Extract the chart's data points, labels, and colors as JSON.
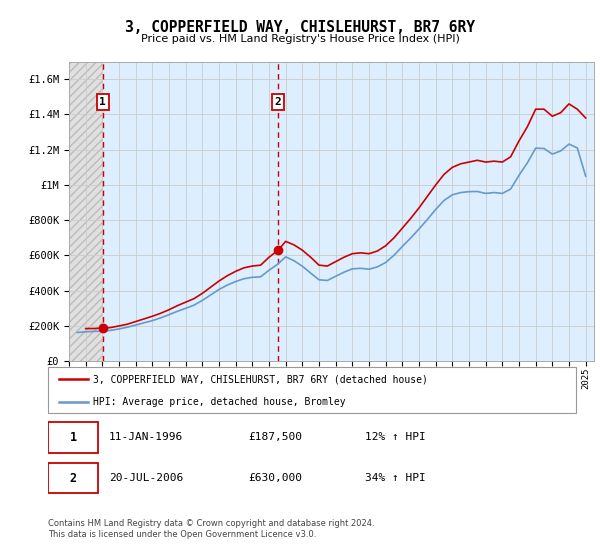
{
  "title": "3, COPPERFIELD WAY, CHISLEHURST, BR7 6RY",
  "subtitle": "Price paid vs. HM Land Registry's House Price Index (HPI)",
  "ylabel_ticks": [
    "£0",
    "£200K",
    "£400K",
    "£600K",
    "£800K",
    "£1M",
    "£1.2M",
    "£1.4M",
    "£1.6M"
  ],
  "ytick_values": [
    0,
    200000,
    400000,
    600000,
    800000,
    1000000,
    1200000,
    1400000,
    1600000
  ],
  "ylim": [
    0,
    1700000
  ],
  "xlim_start": 1994.0,
  "xlim_end": 2025.5,
  "xticks": [
    1994,
    1995,
    1996,
    1997,
    1998,
    1999,
    2000,
    2001,
    2002,
    2003,
    2004,
    2005,
    2006,
    2007,
    2008,
    2009,
    2010,
    2011,
    2012,
    2013,
    2014,
    2015,
    2016,
    2017,
    2018,
    2019,
    2020,
    2021,
    2022,
    2023,
    2024,
    2025
  ],
  "purchase1_x": 1996.03,
  "purchase1_y": 187500,
  "purchase2_x": 2006.55,
  "purchase2_y": 630000,
  "purchase1_label": "1",
  "purchase2_label": "2",
  "red_line_color": "#cc0000",
  "blue_line_color": "#6699cc",
  "grid_color": "#cccccc",
  "bg_color": "#ddeeff",
  "hatch_bg": "#e0e0e0",
  "legend1_text": "3, COPPERFIELD WAY, CHISLEHURST, BR7 6RY (detached house)",
  "legend2_text": "HPI: Average price, detached house, Bromley",
  "table_row1": [
    "1",
    "11-JAN-1996",
    "£187,500",
    "12% ↑ HPI"
  ],
  "table_row2": [
    "2",
    "20-JUL-2006",
    "£630,000",
    "34% ↑ HPI"
  ],
  "footer_text": "Contains HM Land Registry data © Crown copyright and database right 2024.\nThis data is licensed under the Open Government Licence v3.0.",
  "red_hpi_data_x": [
    1995.0,
    1995.5,
    1996.03,
    1996.5,
    1997.0,
    1997.5,
    1998.0,
    1998.5,
    1999.0,
    1999.5,
    2000.0,
    2000.5,
    2001.0,
    2001.5,
    2002.0,
    2002.5,
    2003.0,
    2003.5,
    2004.0,
    2004.5,
    2005.0,
    2005.5,
    2006.0,
    2006.55,
    2007.0,
    2007.5,
    2008.0,
    2008.5,
    2009.0,
    2009.5,
    2010.0,
    2010.5,
    2011.0,
    2011.5,
    2012.0,
    2012.5,
    2013.0,
    2013.5,
    2014.0,
    2014.5,
    2015.0,
    2015.5,
    2016.0,
    2016.5,
    2017.0,
    2017.5,
    2018.0,
    2018.5,
    2019.0,
    2019.5,
    2020.0,
    2020.5,
    2021.0,
    2021.5,
    2022.0,
    2022.5,
    2023.0,
    2023.5,
    2024.0,
    2024.5,
    2025.0
  ],
  "red_hpi_data_y": [
    185000,
    185500,
    187500,
    191000,
    200000,
    210000,
    225000,
    240000,
    255000,
    272000,
    292000,
    315000,
    335000,
    355000,
    385000,
    420000,
    455000,
    485000,
    510000,
    530000,
    540000,
    545000,
    590000,
    630000,
    680000,
    660000,
    630000,
    590000,
    545000,
    540000,
    565000,
    590000,
    610000,
    615000,
    610000,
    625000,
    655000,
    700000,
    755000,
    810000,
    870000,
    935000,
    1000000,
    1060000,
    1100000,
    1120000,
    1130000,
    1140000,
    1130000,
    1135000,
    1130000,
    1160000,
    1250000,
    1330000,
    1430000,
    1430000,
    1390000,
    1410000,
    1460000,
    1430000,
    1380000
  ],
  "blue_hpi_data_x": [
    1994.5,
    1995.0,
    1995.5,
    1996.0,
    1996.5,
    1997.0,
    1997.5,
    1998.0,
    1998.5,
    1999.0,
    1999.5,
    2000.0,
    2000.5,
    2001.0,
    2001.5,
    2002.0,
    2002.5,
    2003.0,
    2003.5,
    2004.0,
    2004.5,
    2005.0,
    2005.5,
    2006.0,
    2006.5,
    2007.0,
    2007.5,
    2008.0,
    2008.5,
    2009.0,
    2009.5,
    2010.0,
    2010.5,
    2011.0,
    2011.5,
    2012.0,
    2012.5,
    2013.0,
    2013.5,
    2014.0,
    2014.5,
    2015.0,
    2015.5,
    2016.0,
    2016.5,
    2017.0,
    2017.5,
    2018.0,
    2018.5,
    2019.0,
    2019.5,
    2020.0,
    2020.5,
    2021.0,
    2021.5,
    2022.0,
    2022.5,
    2023.0,
    2023.5,
    2024.0,
    2024.5,
    2025.0
  ],
  "blue_hpi_data_y": [
    163000,
    167000,
    169000,
    171000,
    175000,
    183000,
    193000,
    205000,
    218000,
    230000,
    246000,
    264000,
    283000,
    300000,
    318000,
    345000,
    376000,
    407000,
    432000,
    452000,
    468000,
    476000,
    479000,
    516000,
    549000,
    592000,
    570000,
    539000,
    500000,
    462000,
    458000,
    482000,
    505000,
    524000,
    527000,
    522000,
    535000,
    560000,
    601000,
    651000,
    699000,
    750000,
    804000,
    861000,
    912000,
    944000,
    957000,
    962000,
    963000,
    952000,
    957000,
    952000,
    977000,
    1055000,
    1125000,
    1209000,
    1207000,
    1175000,
    1193000,
    1232000,
    1210000,
    1050000
  ]
}
